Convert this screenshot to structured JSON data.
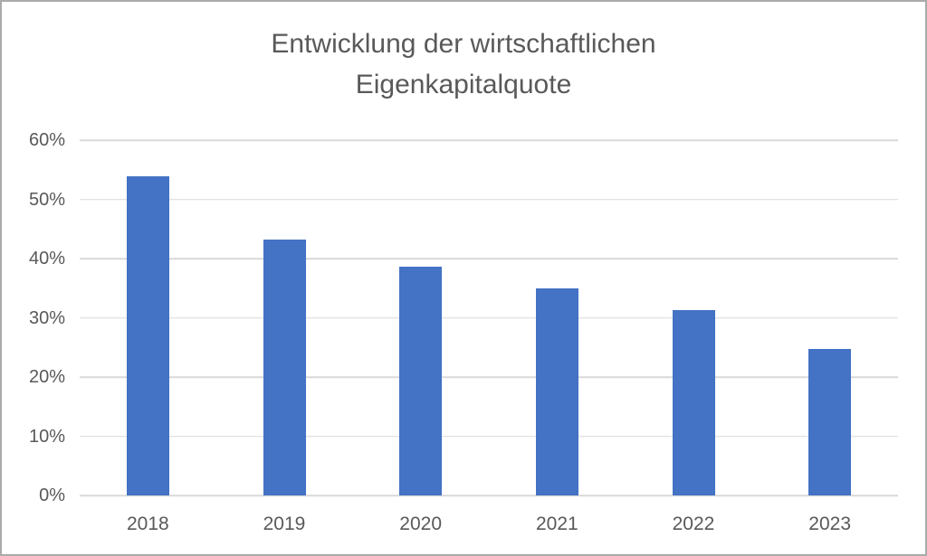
{
  "chart_data": {
    "type": "bar",
    "title": "Entwicklung der wirtschaftlichen Eigenkapitalquote",
    "categories": [
      "2018",
      "2019",
      "2020",
      "2021",
      "2022",
      "2023"
    ],
    "values": [
      53.9,
      43.2,
      38.6,
      35.0,
      31.3,
      24.7
    ],
    "xlabel": "",
    "ylabel": "",
    "ylim": [
      0,
      60
    ],
    "yticks": [
      0,
      10,
      20,
      30,
      40,
      50,
      60
    ],
    "ytick_labels": [
      "0%",
      "10%",
      "20%",
      "30%",
      "40%",
      "50%",
      "60%"
    ],
    "grid": "horizontal",
    "legend": "none",
    "bar_color": "#4472c4",
    "gridline_color": "#d9d9d9",
    "text_color": "#595959",
    "border_color": "#ababab"
  }
}
